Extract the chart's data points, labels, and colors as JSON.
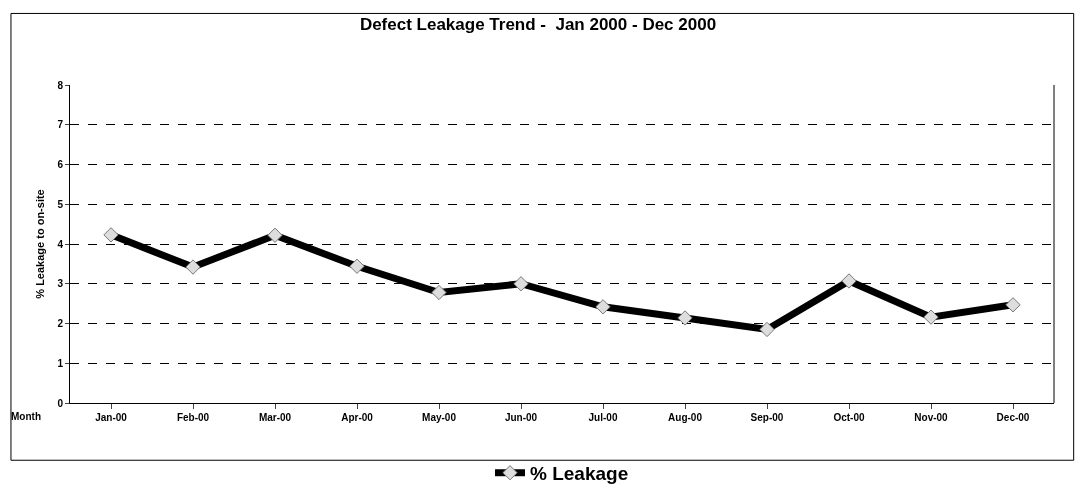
{
  "chart_data": {
    "type": "line",
    "title": "Defect Leakage Trend -  Jan 2000 - Dec 2000",
    "xlabel": "Month",
    "ylabel": "% Leakage to on-site",
    "categories": [
      "Jan-00",
      "Feb-00",
      "Mar-00",
      "Apr-00",
      "May-00",
      "Jun-00",
      "Jul-00",
      "Aug-00",
      "Sep-00",
      "Oct-00",
      "Nov-00",
      "Dec-00"
    ],
    "series": [
      {
        "name": "% Leakage",
        "color": "#000000",
        "values": [
          4.23,
          3.42,
          4.22,
          3.44,
          2.78,
          3.0,
          2.42,
          2.14,
          1.85,
          3.07,
          2.16,
          2.47
        ]
      }
    ],
    "ylim": [
      0,
      8
    ],
    "yticks": [
      0,
      1,
      2,
      3,
      4,
      5,
      6,
      7,
      8
    ],
    "grid": "y",
    "legend": "bottom",
    "marker": "diamond",
    "line_style": "solid"
  }
}
